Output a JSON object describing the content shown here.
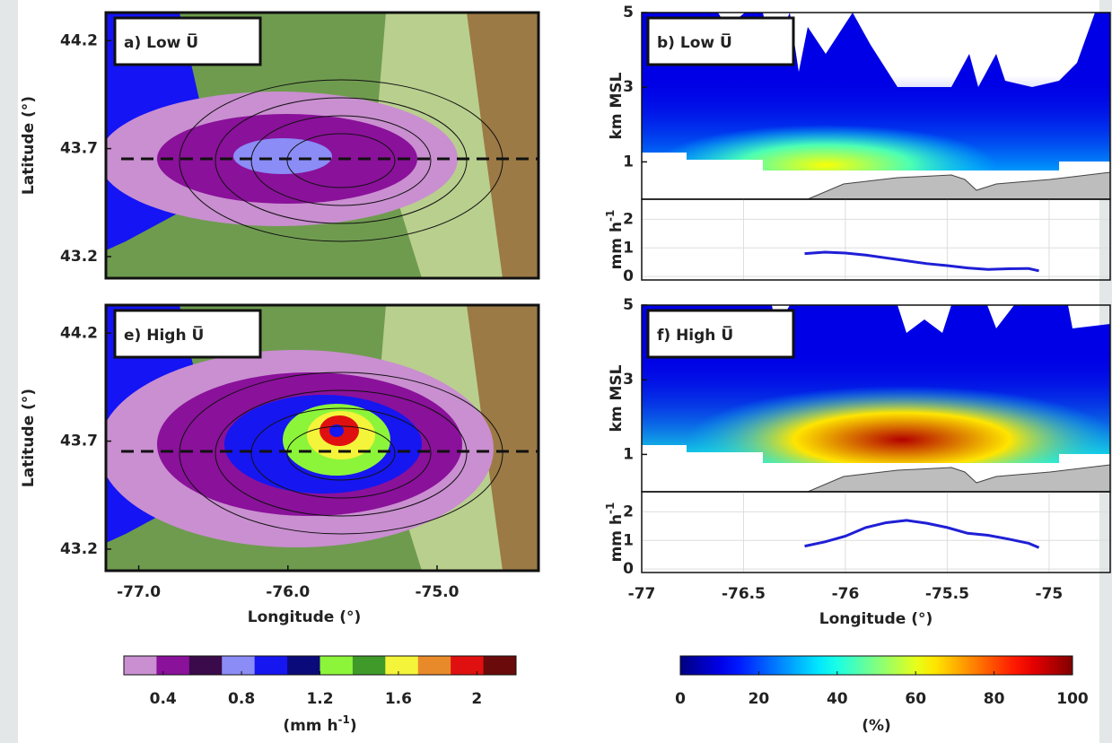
{
  "chart_data": [
    {
      "type": "map",
      "title": "a) Low U̅",
      "ylabel": "Latitude (°)",
      "xlim": [
        -77.22,
        -74.32
      ],
      "ylim": [
        43.1,
        44.33
      ],
      "yticks": [
        43.2,
        43.7,
        44.2
      ]
    },
    {
      "type": "heatmap",
      "title": "b) Low U̅",
      "ylabel": "km MSL",
      "xlim": [
        -77,
        -74.7
      ],
      "ylim": [
        0,
        5
      ],
      "yticks": [
        1,
        3,
        5
      ]
    },
    {
      "type": "line",
      "ylabel": [
        "mm h",
        "-1"
      ],
      "xlim": [
        -77,
        -74.7
      ],
      "ylim": [
        -0.12,
        2.7
      ],
      "xticks": [
        -76.5,
        -76,
        -75.5,
        -75
      ],
      "yticks": [
        0,
        1,
        2
      ],
      "grid": true,
      "color": "#1f1fd6",
      "x": [
        -76.2,
        -76.1,
        -76.0,
        -75.9,
        -75.8,
        -75.7,
        -75.6,
        -75.5,
        -75.4,
        -75.3,
        -75.2,
        -75.1,
        -75.05
      ],
      "values": [
        0.8,
        0.85,
        0.82,
        0.75,
        0.65,
        0.55,
        0.45,
        0.38,
        0.3,
        0.25,
        0.27,
        0.28,
        0.2
      ]
    },
    {
      "type": "map",
      "title": "e) High U̅",
      "xlabel": "Longitude (°)",
      "ylabel": "Latitude (°)",
      "xlim": [
        -77.22,
        -74.32
      ],
      "ylim": [
        43.1,
        44.33
      ],
      "xticks": [
        {
          "value": -77,
          "label": "-77.0"
        },
        {
          "value": -76,
          "label": "-76.0"
        },
        {
          "value": -75,
          "label": "-75.0"
        }
      ],
      "yticks": [
        43.2,
        43.7,
        44.2
      ]
    },
    {
      "type": "heatmap",
      "title": "f) High U̅",
      "ylabel": "km MSL",
      "xlim": [
        -77,
        -74.7
      ],
      "ylim": [
        0,
        5
      ],
      "yticks": [
        1,
        3,
        5
      ]
    },
    {
      "type": "line",
      "xlabel": "Longitude (°)",
      "ylabel": [
        "mm h",
        "-1"
      ],
      "xlim": [
        -77,
        -74.7
      ],
      "ylim": [
        -0.12,
        2.7
      ],
      "xticks": [
        -77,
        -76.5,
        -76,
        -75.5,
        -75
      ],
      "yticks": [
        0,
        1,
        2
      ],
      "grid": true,
      "color": "#1f1fd6",
      "x": [
        -76.2,
        -76.1,
        -76.0,
        -75.9,
        -75.8,
        -75.7,
        -75.6,
        -75.5,
        -75.4,
        -75.3,
        -75.2,
        -75.1,
        -75.05
      ],
      "values": [
        0.8,
        0.95,
        1.15,
        1.45,
        1.62,
        1.7,
        1.6,
        1.45,
        1.25,
        1.18,
        1.05,
        0.9,
        0.75
      ]
    },
    {
      "type": "colorbar",
      "colors": [
        "#c98fd0",
        "#8a119a",
        "#3a0a4a",
        "#8b8cf6",
        "#1616f0",
        "#0a0a7a",
        "#8cf53a",
        "#3f9a2a",
        "#f4f43a",
        "#e98a2a",
        "#e01010",
        "#6a0a0a"
      ],
      "clim": [
        0.2,
        2.2
      ],
      "ticks": [
        0.4,
        0.8,
        1.2,
        1.6,
        2
      ],
      "label": [
        "(mm h",
        "-1",
        ")"
      ]
    },
    {
      "type": "colorbar",
      "colormap": "jet",
      "clim": [
        0,
        100
      ],
      "ticks": [
        0,
        20,
        40,
        60,
        80,
        100
      ],
      "label": "(%)"
    }
  ]
}
